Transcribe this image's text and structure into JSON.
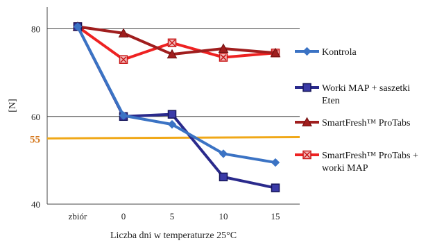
{
  "chart_data": {
    "type": "line",
    "categories": [
      "zbiór",
      "0",
      "5",
      "10",
      "15"
    ],
    "series": [
      {
        "name": "Kontrola",
        "values": [
          80.5,
          60.2,
          58.2,
          51.5,
          49.5
        ],
        "color": "#3b73c4",
        "marker": "diamond"
      },
      {
        "name": "Worki MAP + saszetki Eten",
        "values": [
          80.5,
          60.0,
          60.5,
          46.2,
          43.7
        ],
        "color": "#2a2a8c",
        "marker": "square"
      },
      {
        "name": "SmartFresh™ ProTabs",
        "values": [
          80.5,
          79.0,
          74.2,
          75.5,
          74.5
        ],
        "color": "#a01e1e",
        "marker": "triangle"
      },
      {
        "name": "SmartFresh™ ProTabs + worki MAP",
        "values": [
          80.5,
          73.0,
          76.8,
          73.5,
          74.5
        ],
        "color": "#ee2222",
        "marker": "x-square"
      }
    ],
    "reference_line": {
      "label": "55",
      "y_start": 55.0,
      "y_end": 55.3,
      "color": "#f0a818"
    },
    "xlabel": "Liczba dni w temperaturze 25°C",
    "ylabel": "[N]",
    "ylim": [
      40,
      85
    ],
    "yticks": [
      "40",
      "60",
      "80"
    ],
    "ytick_values": [
      40,
      60,
      80
    ],
    "grid": "horizontal",
    "legend_position": "right"
  }
}
